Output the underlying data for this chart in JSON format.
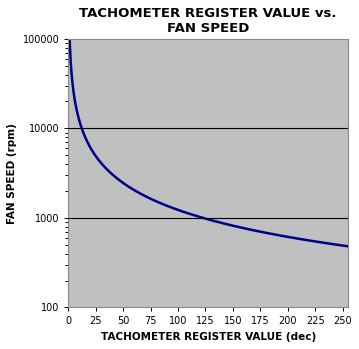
{
  "title": "TACHOMETER REGISTER VALUE vs.\nFAN SPEED",
  "xlabel": "TACHOMETER REGISTER VALUE (dec)",
  "ylabel": "FAN SPEED (rpm)",
  "background_color": "#c0c0c0",
  "line_color": "#00008B",
  "line_width": 1.8,
  "xlim": [
    0,
    255
  ],
  "ylim": [
    100,
    100000
  ],
  "xticks": [
    0,
    25,
    50,
    75,
    100,
    125,
    150,
    175,
    200,
    225,
    250
  ],
  "yticks": [
    100,
    1000,
    10000,
    100000
  ],
  "ytick_labels": [
    "100",
    "1000",
    "10000",
    "100000"
  ],
  "hlines": [
    1000,
    10000
  ],
  "hline_color": "#000000",
  "C": 122880.0,
  "title_fontsize": 9.5,
  "label_fontsize": 7.5,
  "tick_fontsize": 7,
  "fig_facecolor": "#ffffff",
  "border_color": "#888888"
}
